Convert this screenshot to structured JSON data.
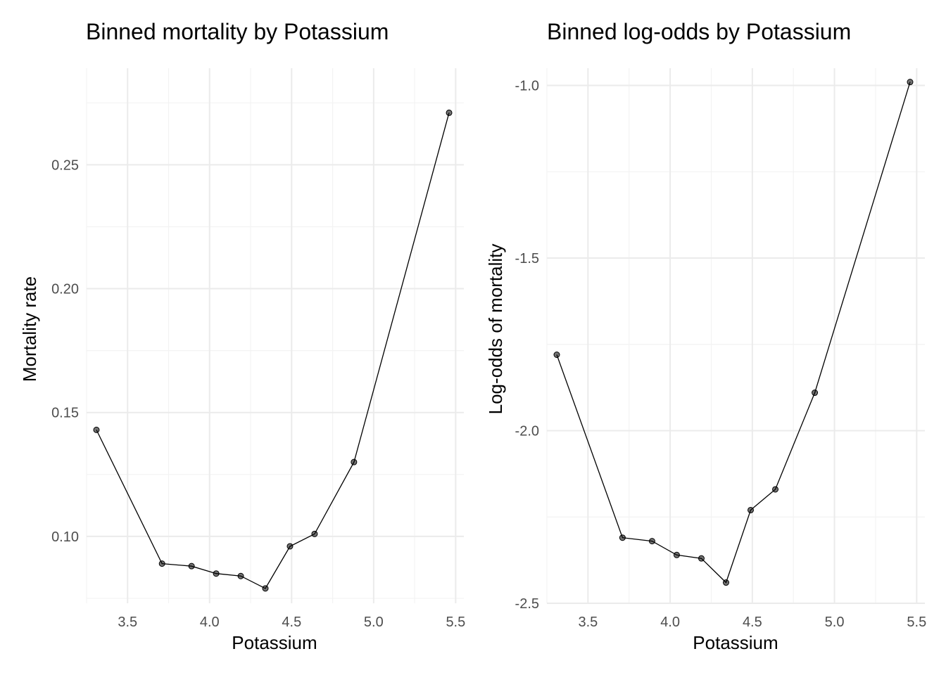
{
  "chart_data": [
    {
      "type": "line",
      "title": "Binned mortality by Potassium",
      "xlabel": "Potassium",
      "ylabel": "Mortality rate",
      "xlim": [
        3.25,
        5.55
      ],
      "ylim": [
        0.073,
        0.289
      ],
      "x_ticks": [
        3.5,
        4.0,
        4.5,
        5.0,
        5.5
      ],
      "x_tick_labels": [
        "3.5",
        "4.0",
        "4.5",
        "5.0",
        "5.5"
      ],
      "y_ticks": [
        0.1,
        0.15,
        0.2,
        0.25
      ],
      "y_tick_labels": [
        "0.10",
        "0.15",
        "0.20",
        "0.25"
      ],
      "grid": true,
      "series": [
        {
          "x": [
            3.31,
            3.71,
            3.89,
            4.04,
            4.19,
            4.34,
            4.49,
            4.64,
            4.88,
            5.46
          ],
          "y": [
            0.143,
            0.089,
            0.088,
            0.085,
            0.084,
            0.079,
            0.096,
            0.101,
            0.13,
            0.271
          ]
        }
      ]
    },
    {
      "type": "line",
      "title": "Binned log-odds by Potassium",
      "xlabel": "Potassium",
      "ylabel": "Log-odds of mortality",
      "xlim": [
        3.25,
        5.55
      ],
      "ylim": [
        -2.5,
        -0.95
      ],
      "x_ticks": [
        3.5,
        4.0,
        4.5,
        5.0,
        5.5
      ],
      "x_tick_labels": [
        "3.5",
        "4.0",
        "4.5",
        "5.0",
        "5.5"
      ],
      "y_ticks": [
        -2.5,
        -2.0,
        -1.5,
        -1.0
      ],
      "y_tick_labels": [
        "-2.5",
        "-2.0",
        "-1.5",
        "-1.0"
      ],
      "grid": true,
      "series": [
        {
          "x": [
            3.31,
            3.71,
            3.89,
            4.04,
            4.19,
            4.34,
            4.49,
            4.64,
            4.88,
            5.46
          ],
          "y": [
            -1.78,
            -2.31,
            -2.32,
            -2.36,
            -2.37,
            -2.44,
            -2.23,
            -2.17,
            -1.89,
            -0.99
          ]
        }
      ]
    }
  ]
}
